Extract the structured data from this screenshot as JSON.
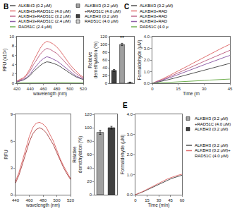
{
  "chart_data": [
    {
      "type": "line",
      "title": "B",
      "xlabel": "wavelength (nm)",
      "ylabel": "RFU (x10²)",
      "x": [
        420,
        430,
        435,
        440,
        445,
        450,
        455,
        460,
        465,
        470,
        475,
        480,
        485,
        490,
        495,
        500,
        505,
        510,
        515,
        520
      ],
      "series": [
        {
          "name": "ALKBH3 (0.2 μM)",
          "color": "#505050",
          "values": [
            0.3,
            0.7,
            1.1,
            1.7,
            2.5,
            3.2,
            3.8,
            4.3,
            4.6,
            4.5,
            4.3,
            4.0,
            3.6,
            3.1,
            2.6,
            2.1,
            1.7,
            1.3,
            1.0,
            0.8
          ]
        },
        {
          "name": "ALKBH3+RAD51C (4.0 μM)",
          "color": "#e07070",
          "values": [
            0.5,
            1.2,
            2.0,
            3.2,
            4.8,
            6.2,
            7.5,
            8.5,
            9.0,
            8.8,
            8.4,
            7.8,
            7.0,
            6.0,
            5.0,
            4.0,
            3.2,
            2.5,
            1.8,
            1.3
          ]
        },
        {
          "name": "ALKBH3+RAD51C (3.2 μM)",
          "color": "#c06888",
          "values": [
            0.4,
            1.0,
            1.7,
            2.7,
            4.0,
            5.2,
            6.2,
            7.0,
            7.5,
            7.3,
            6.9,
            6.4,
            5.7,
            4.9,
            4.1,
            3.3,
            2.6,
            2.0,
            1.5,
            1.1
          ]
        },
        {
          "name": "ALKBH3+RAD51C (2.4 μM)",
          "color": "#9060a8",
          "values": [
            0.3,
            0.8,
            1.3,
            2.0,
            3.0,
            3.9,
            4.7,
            5.3,
            5.7,
            5.5,
            5.2,
            4.8,
            4.3,
            3.7,
            3.1,
            2.5,
            2.0,
            1.5,
            1.2,
            0.9
          ]
        },
        {
          "name": "RAD51C (2.4 μM)",
          "color": "#70b050",
          "values": [
            0.05,
            0.08,
            0.1,
            0.12,
            0.15,
            0.18,
            0.2,
            0.22,
            0.23,
            0.22,
            0.21,
            0.2,
            0.18,
            0.16,
            0.14,
            0.12,
            0.1,
            0.09,
            0.08,
            0.06
          ]
        }
      ],
      "xlim": [
        420,
        520
      ],
      "xticks": [
        420,
        440,
        460,
        480,
        500,
        520
      ],
      "ylim": [
        0,
        10
      ],
      "yticks": [
        0,
        2,
        4,
        6,
        8,
        10
      ],
      "grid": false
    },
    {
      "type": "bar",
      "ylabel": "Relative\ndemethylation (%)",
      "categories": [
        null,
        null,
        null
      ],
      "series": [
        {
          "name": "ALKBH3 (0.2 μM)\n+RAD51C (4.0 μM)",
          "color": "#a0a0a0",
          "values": [
            null,
            100,
            null
          ],
          "errors": [
            null,
            3,
            null
          ]
        },
        {
          "name": "ALKBH3 (0.2 μM)",
          "color": "#404040",
          "values": [
            33,
            null,
            null
          ],
          "errors": [
            2.5,
            null,
            null
          ]
        },
        {
          "name": "RAD51C (4.0 μM)",
          "color": "#d0d0d0",
          "values": [
            null,
            null,
            2
          ],
          "errors": [
            null,
            null,
            1
          ]
        }
      ],
      "ylim": [
        0,
        120
      ],
      "yticks": [
        0,
        20,
        40,
        60,
        80,
        100,
        120
      ],
      "annotations": [
        {
          "text": "**",
          "x": 1,
          "y": 106
        }
      ],
      "tick_labels": "y",
      "grid": false
    },
    {
      "type": "line",
      "title": "C",
      "xlabel": "Time (m",
      "ylabel": "Formaldehyde (μM)",
      "x": [
        0,
        3,
        6,
        9,
        12,
        15,
        18,
        21,
        24,
        27,
        30,
        33,
        36,
        39,
        42,
        45
      ],
      "series": [
        {
          "name": "ALKBH3 (0.2 μM)",
          "color": "#505050",
          "values": [
            0,
            0.09,
            0.19,
            0.3,
            0.41,
            0.53,
            0.65,
            0.77,
            0.89,
            1.01,
            1.13,
            1.25,
            1.37,
            1.49,
            1.6,
            1.71
          ]
        },
        {
          "name": "ALKBH3+RAD",
          "color": "#e07070",
          "values": [
            0,
            0.18,
            0.38,
            0.6,
            0.82,
            1.05,
            1.28,
            1.52,
            1.76,
            2.0,
            2.24,
            2.48,
            2.7,
            2.92,
            3.14,
            3.35
          ]
        },
        {
          "name": "ALKBH3+RAD",
          "color": "#c06888",
          "values": [
            0,
            0.15,
            0.32,
            0.5,
            0.69,
            0.88,
            1.08,
            1.28,
            1.48,
            1.68,
            1.88,
            2.08,
            2.27,
            2.46,
            2.65,
            2.83
          ]
        },
        {
          "name": "ALKBH3+RAD",
          "color": "#9060a8",
          "values": [
            0,
            0.13,
            0.27,
            0.42,
            0.58,
            0.74,
            0.91,
            1.08,
            1.25,
            1.42,
            1.59,
            1.76,
            1.92,
            2.08,
            2.24,
            2.39
          ]
        },
        {
          "name": "RAD51C (4.0 μ",
          "color": "#70b050",
          "values": [
            0,
            0.02,
            0.04,
            0.07,
            0.09,
            0.12,
            0.14,
            0.17,
            0.19,
            0.22,
            0.24,
            0.27,
            0.29,
            0.32,
            0.34,
            0.36
          ]
        }
      ],
      "xlim": [
        0,
        45
      ],
      "xticks": [
        0,
        15,
        30,
        45
      ],
      "ylim": [
        0,
        4.0
      ],
      "yticks": [
        {
          "value": 0,
          "label": "0.0"
        },
        {
          "value": 1,
          "label": "1.0"
        },
        {
          "value": 2,
          "label": "2.0"
        },
        {
          "value": 3,
          "label": "3.0"
        },
        {
          "value": 4,
          "label": "4.0"
        }
      ],
      "grid": false
    },
    {
      "type": "line",
      "xlabel": "wavelength (nm)",
      "ylabel": "RFU",
      "x": [
        440,
        445,
        450,
        455,
        460,
        465,
        470,
        475,
        480,
        485,
        490,
        495,
        500,
        505,
        510,
        515,
        520
      ],
      "series": [
        {
          "color": "#e07070",
          "values": [
            1.5,
            2.5,
            3.8,
            5.2,
            6.5,
            7.5,
            8.0,
            8.1,
            7.9,
            7.5,
            6.8,
            6.0,
            5.0,
            4.0,
            3.2,
            2.5,
            1.8
          ]
        },
        {
          "color": "#b05050",
          "values": [
            1.3,
            2.2,
            3.4,
            4.7,
            5.9,
            6.8,
            7.3,
            7.5,
            7.3,
            6.9,
            6.3,
            5.6,
            4.7,
            3.8,
            3.0,
            2.3,
            1.7
          ]
        }
      ],
      "xlim": [
        440,
        520
      ],
      "xticks": [
        440,
        460,
        480,
        500,
        520
      ],
      "ylim": [
        0,
        9
      ],
      "yticks": [
        0,
        3,
        6,
        9
      ],
      "grid": false
    },
    {
      "type": "bar",
      "ylabel": "Relative\ndemethylation (%)",
      "categories": [
        null,
        null
      ],
      "series": [
        {
          "name": "ALKBH3 (0.2 μM)\n+RAD51C (4.0 μM)",
          "color": "#a0a0a0",
          "values": [
            93,
            null
          ],
          "errors": [
            3,
            null
          ]
        },
        {
          "name": "ALKBH3 (0.2 μM)",
          "color": "#404040",
          "values": [
            null,
            100
          ],
          "errors": [
            null,
            2
          ]
        }
      ],
      "ylim": [
        0,
        120
      ],
      "yticks": [
        0,
        20,
        40,
        60,
        80,
        100,
        120
      ],
      "tick_labels": "y",
      "grid": false
    },
    {
      "type": "line",
      "title": "E",
      "xlabel": "Time (min)",
      "ylabel": "Formaldehyde (μM)",
      "x": [
        0,
        5,
        10,
        15,
        20,
        25,
        30,
        35,
        40,
        45,
        50,
        55,
        60
      ],
      "series": [
        {
          "name": "ALKBH3 (0.2 μM)",
          "color": "#505050",
          "values": [
            0,
            0.07,
            0.15,
            0.24,
            0.33,
            0.43,
            0.52,
            0.61,
            0.7,
            0.78,
            0.85,
            0.91,
            0.97
          ]
        },
        {
          "name": "ALKBH3 (0.2 μM)+\nRAD51C (4.0 μM)",
          "color": "#e07070",
          "values": [
            0,
            0.08,
            0.17,
            0.27,
            0.37,
            0.47,
            0.57,
            0.67,
            0.76,
            0.84,
            0.91,
            0.97,
            1.02
          ]
        }
      ],
      "xlim": [
        0,
        60
      ],
      "xticks": [
        0,
        15,
        30,
        45,
        60
      ],
      "ylim": [
        0,
        4.0
      ],
      "yticks": [
        {
          "value": 0,
          "label": "0.0"
        },
        {
          "value": 1,
          "label": "1.0"
        },
        {
          "value": 2,
          "label": "2.0"
        },
        {
          "value": 3,
          "label": "3.0"
        },
        {
          "value": 4,
          "label": "4.0"
        }
      ],
      "grid": false
    }
  ]
}
